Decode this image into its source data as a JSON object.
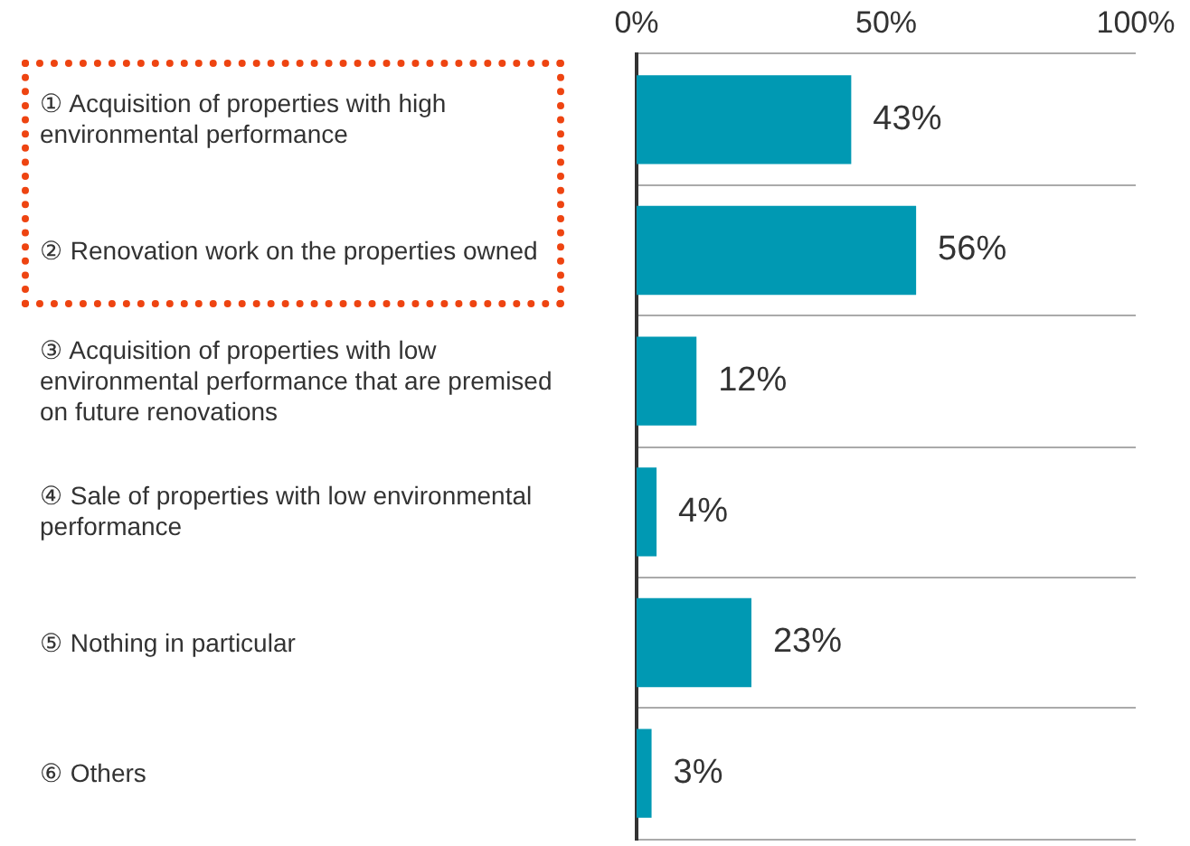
{
  "chart_data": {
    "type": "bar",
    "orientation": "horizontal",
    "categories": [
      "① Acquisition of properties with high environmental performance",
      "② Renovation work on the properties owned",
      "③ Acquisition of properties with low environmental performance that are premised on future renovations",
      "④ Sale of properties with low environmental performance",
      "⑤ Nothing in particular",
      "⑥ Others"
    ],
    "values": [
      43,
      56,
      12,
      4,
      23,
      3
    ],
    "value_labels": [
      "43%",
      "56%",
      "12%",
      "4%",
      "23%",
      "3%"
    ],
    "color": "#0099b3",
    "xlim": [
      0,
      100
    ],
    "xticks": [
      {
        "value": 0,
        "label": "0%"
      },
      {
        "value": 50,
        "label": "50%"
      },
      {
        "value": 100,
        "label": "100%"
      }
    ],
    "grid": "y"
  }
}
